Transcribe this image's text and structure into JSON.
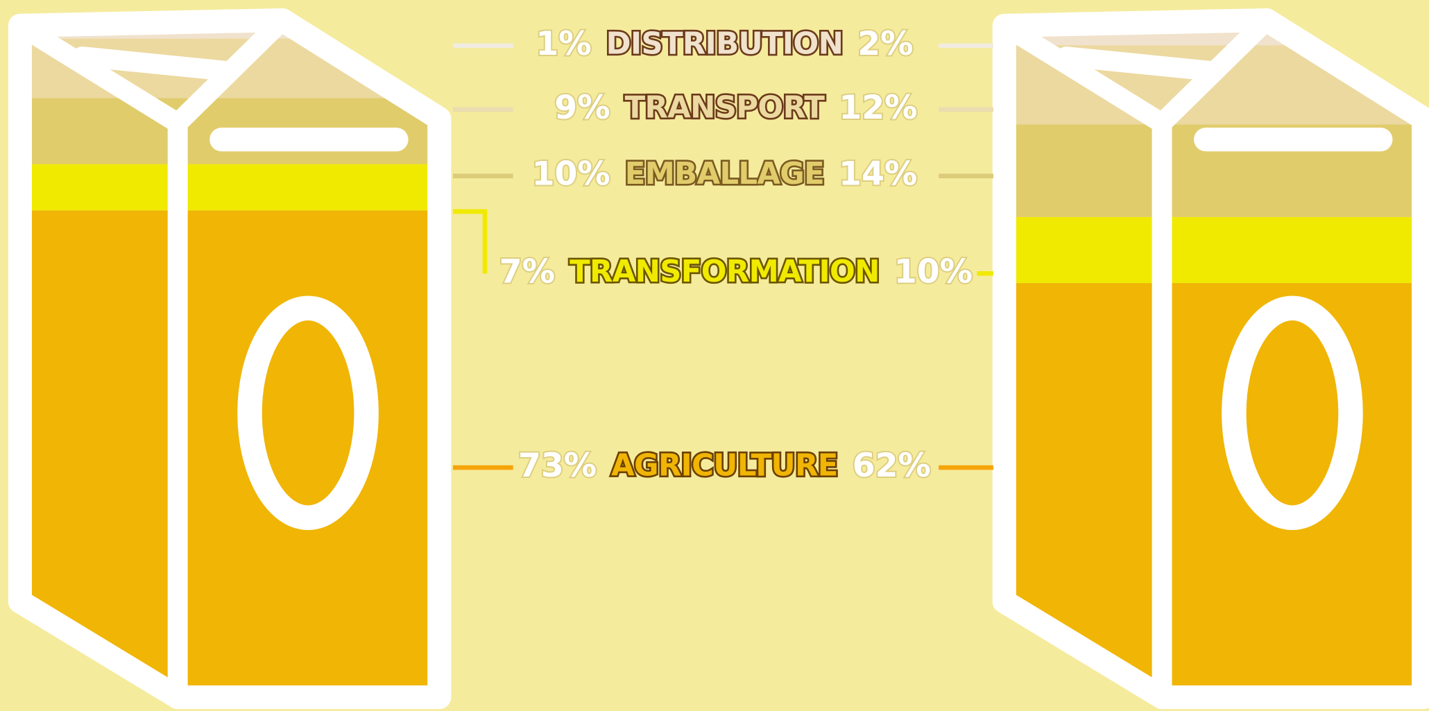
{
  "chart_data": {
    "type": "carton",
    "categories": [
      "DISTRIBUTION",
      "TRANSPORT",
      "EMBALLAGE",
      "TRANSFORMATION",
      "AGRICULTURE"
    ],
    "colors": [
      "#f0e2cc",
      "#ecd9a0",
      "#e1cc6c",
      "#f0ea00",
      "#f0b505"
    ],
    "series": [
      {
        "values": [
          1,
          9,
          10,
          7,
          73
        ],
        "value_labels": [
          "1%",
          "9%",
          "10%",
          "7%",
          "73%"
        ]
      },
      {
        "values": [
          2,
          12,
          14,
          10,
          62
        ],
        "value_labels": [
          "2%",
          "12%",
          "14%",
          "10%",
          "62%"
        ]
      }
    ]
  }
}
